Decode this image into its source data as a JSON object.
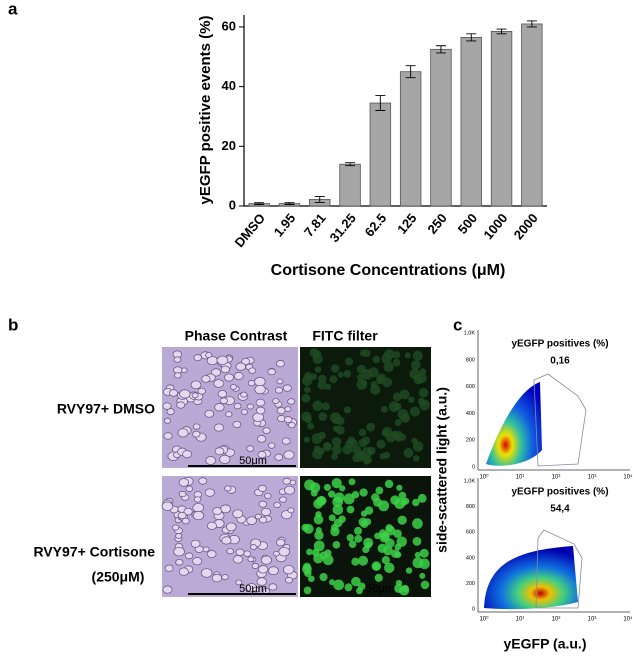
{
  "chart_data": {
    "type": "bar",
    "panel_label": "a",
    "y_label": "yEGFP positive events (%)",
    "x_label": "Cortisone Concentrations (μM)",
    "categories": [
      "DMSO",
      "1.95",
      "7.81",
      "31.25",
      "62.5",
      "125",
      "250",
      "500",
      "1000",
      "2000"
    ],
    "values": [
      0.8,
      0.8,
      2.2,
      14,
      34.5,
      45,
      52.5,
      56.5,
      58.5,
      61
    ],
    "errors": [
      0.3,
      0.3,
      1,
      0.5,
      2.5,
      2,
      1.2,
      1.2,
      0.8,
      1
    ],
    "color": "#a6a6a6",
    "ylim": [
      0,
      64
    ],
    "yticks": [
      0,
      20,
      40,
      60
    ]
  },
  "panel_b": {
    "label": "b",
    "columns": [
      "Phase Contrast",
      "FITC filter"
    ],
    "rows": [
      "RVY97+ DMSO",
      "RVY97+ Cortisone",
      "(250μM)"
    ],
    "scale_bar": "50μm"
  },
  "panel_c": {
    "label": "c",
    "y_label": "side-scattered light (a.u.)",
    "x_label": "yEGFP (a.u.)",
    "gate_label": "yEGFP positives (%)",
    "gate_values": [
      "0,16",
      "54,4"
    ],
    "yticks": [
      "1,0K",
      "800",
      "600",
      "400",
      "200",
      "0"
    ],
    "xticks": [
      "10⁰",
      "10¹",
      "10²",
      "10³",
      "10⁴"
    ]
  }
}
